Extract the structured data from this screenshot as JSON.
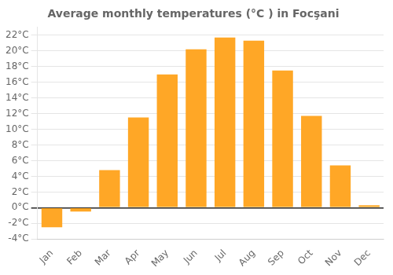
{
  "chart_data": {
    "type": "bar",
    "title": "Average monthly temperatures (°C ) in Focşani",
    "categories": [
      "Jan",
      "Feb",
      "Mar",
      "Apr",
      "May",
      "Jun",
      "Jul",
      "Aug",
      "Sep",
      "Oct",
      "Nov",
      "Dec"
    ],
    "values": [
      -2.5,
      -0.5,
      4.8,
      11.5,
      17.0,
      20.2,
      21.7,
      21.3,
      17.5,
      11.7,
      5.4,
      0.3
    ],
    "color": "#FFA726",
    "ylim": [
      -4,
      23
    ],
    "yticks": [
      {
        "value": -4,
        "label": "-4°C"
      },
      {
        "value": -2,
        "label": "-2°C"
      },
      {
        "value": 0,
        "label": "0°C"
      },
      {
        "value": 2,
        "label": "2°C"
      },
      {
        "value": 4,
        "label": "4°C"
      },
      {
        "value": 6,
        "label": "6°C"
      },
      {
        "value": 8,
        "label": "8°C"
      },
      {
        "value": 10,
        "label": "10°C"
      },
      {
        "value": 12,
        "label": "12°C"
      },
      {
        "value": 14,
        "label": "14°C"
      },
      {
        "value": 16,
        "label": "16°C"
      },
      {
        "value": 18,
        "label": "18°C"
      },
      {
        "value": 20,
        "label": "20°C"
      },
      {
        "value": 22,
        "label": "22°C"
      }
    ],
    "grid": true
  }
}
